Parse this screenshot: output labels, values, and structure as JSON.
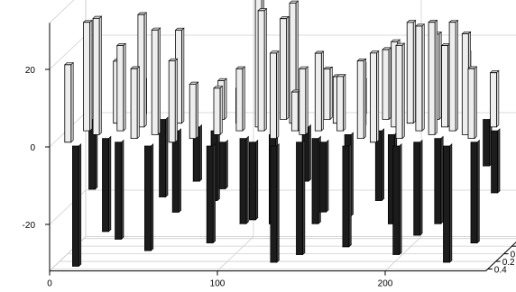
{
  "chart_data": {
    "type": "bar",
    "projection": "3d",
    "title": "",
    "xlabel": "",
    "ylabel": "",
    "zlabel": "",
    "x_ticks": [
      "0",
      "100",
      "200"
    ],
    "y_ticks": [
      "-0.4",
      "-0.2",
      "0",
      "0.2",
      "0.4"
    ],
    "z_ticks": [
      "20",
      "0",
      "-20"
    ],
    "xlim": [
      0,
      260
    ],
    "ylim": [
      -0.45,
      0.45
    ],
    "zlim": [
      -32,
      32
    ],
    "grid": true,
    "legend": "none",
    "colors": {
      "positive_face": "#eeeeee",
      "positive_side": "#cfcfcf",
      "negative_face": "#1c1c1c",
      "negative_side": "#3a3a3a",
      "edge": "#000000"
    },
    "bars": [
      {
        "x": 8,
        "y": 0.3,
        "z": 20
      },
      {
        "x": 8,
        "y": -0.3,
        "z": -18
      },
      {
        "x": 12,
        "y": 0.0,
        "z": 28
      },
      {
        "x": 15,
        "y": 0.4,
        "z": -31
      },
      {
        "x": 20,
        "y": 0.1,
        "z": 30
      },
      {
        "x": 25,
        "y": -0.2,
        "z": 16
      },
      {
        "x": 28,
        "y": 0.2,
        "z": -24
      },
      {
        "x": 32,
        "y": 0.0,
        "z": 22
      },
      {
        "x": 35,
        "y": -0.4,
        "z": 9
      },
      {
        "x": 38,
        "y": 0.3,
        "z": -25
      },
      {
        "x": 42,
        "y": -0.1,
        "z": 29
      },
      {
        "x": 45,
        "y": 0.2,
        "z": 18
      },
      {
        "x": 50,
        "y": -0.3,
        "z": -20
      },
      {
        "x": 55,
        "y": 0.1,
        "z": 27
      },
      {
        "x": 58,
        "y": 0.4,
        "z": -27
      },
      {
        "x": 62,
        "y": -0.2,
        "z": 24
      },
      {
        "x": 65,
        "y": 0.0,
        "z": -21
      },
      {
        "x": 70,
        "y": 0.3,
        "z": 21
      },
      {
        "x": 75,
        "y": -0.1,
        "z": -14
      },
      {
        "x": 80,
        "y": 0.2,
        "z": 14
      },
      {
        "x": 85,
        "y": -0.3,
        "z": 10
      },
      {
        "x": 88,
        "y": 0.0,
        "z": -18
      },
      {
        "x": 92,
        "y": 0.1,
        "z": 12
      },
      {
        "x": 95,
        "y": 0.4,
        "z": -25
      },
      {
        "x": 98,
        "y": -0.2,
        "z": 9
      },
      {
        "x": 100,
        "y": 0.3,
        "z": -12
      },
      {
        "x": 103,
        "y": 0.0,
        "z": 16
      },
      {
        "x": 106,
        "y": -0.4,
        "z": 6
      },
      {
        "x": 110,
        "y": 0.2,
        "z": -22
      },
      {
        "x": 112,
        "y": -0.1,
        "z": 33
      },
      {
        "x": 116,
        "y": 0.0,
        "z": 31
      },
      {
        "x": 118,
        "y": 0.3,
        "z": -20
      },
      {
        "x": 122,
        "y": -0.3,
        "z": 26
      },
      {
        "x": 125,
        "y": 0.1,
        "z": -23
      },
      {
        "x": 128,
        "y": 0.2,
        "z": 22
      },
      {
        "x": 130,
        "y": -0.2,
        "z": 31
      },
      {
        "x": 133,
        "y": 0.4,
        "z": -30
      },
      {
        "x": 136,
        "y": 0.0,
        "z": 10
      },
      {
        "x": 140,
        "y": -0.1,
        "z": -14
      },
      {
        "x": 143,
        "y": 0.1,
        "z": 17
      },
      {
        "x": 146,
        "y": 0.3,
        "z": -29
      },
      {
        "x": 148,
        "y": -0.3,
        "z": 13
      },
      {
        "x": 150,
        "y": 0.0,
        "z": 20
      },
      {
        "x": 153,
        "y": 0.2,
        "z": -22
      },
      {
        "x": 156,
        "y": -0.2,
        "z": 12
      },
      {
        "x": 160,
        "y": 0.3,
        "z": -18
      },
      {
        "x": 163,
        "y": 0.0,
        "z": 14
      },
      {
        "x": 166,
        "y": -0.4,
        "z": 9
      },
      {
        "x": 170,
        "y": 0.1,
        "z": -21
      },
      {
        "x": 173,
        "y": -0.1,
        "z": 16
      },
      {
        "x": 176,
        "y": 0.4,
        "z": -26
      },
      {
        "x": 180,
        "y": 0.2,
        "z": 20
      },
      {
        "x": 183,
        "y": -0.3,
        "z": 18
      },
      {
        "x": 186,
        "y": 0.0,
        "z": -18
      },
      {
        "x": 190,
        "y": 0.3,
        "z": 23
      },
      {
        "x": 193,
        "y": -0.1,
        "z": 22
      },
      {
        "x": 196,
        "y": 0.1,
        "z": -23
      },
      {
        "x": 200,
        "y": -0.2,
        "z": 26
      },
      {
        "x": 203,
        "y": 0.2,
        "z": 24
      },
      {
        "x": 206,
        "y": 0.4,
        "z": -28
      },
      {
        "x": 210,
        "y": 0.0,
        "z": 27
      },
      {
        "x": 213,
        "y": -0.3,
        "z": 22
      },
      {
        "x": 216,
        "y": 0.3,
        "z": -24
      },
      {
        "x": 220,
        "y": 0.1,
        "z": 29
      },
      {
        "x": 223,
        "y": -0.1,
        "z": 21
      },
      {
        "x": 226,
        "y": 0.2,
        "z": -22
      },
      {
        "x": 230,
        "y": 0.0,
        "z": 28
      },
      {
        "x": 233,
        "y": -0.2,
        "z": 18
      },
      {
        "x": 236,
        "y": 0.4,
        "z": -30
      },
      {
        "x": 240,
        "y": 0.1,
        "z": 26
      },
      {
        "x": 243,
        "y": -0.3,
        "z": -12
      },
      {
        "x": 246,
        "y": 0.2,
        "z": 18
      },
      {
        "x": 250,
        "y": 0.3,
        "z": -26
      },
      {
        "x": 252,
        "y": -0.1,
        "z": 14
      },
      {
        "x": 255,
        "y": 0.0,
        "z": -16
      }
    ]
  }
}
